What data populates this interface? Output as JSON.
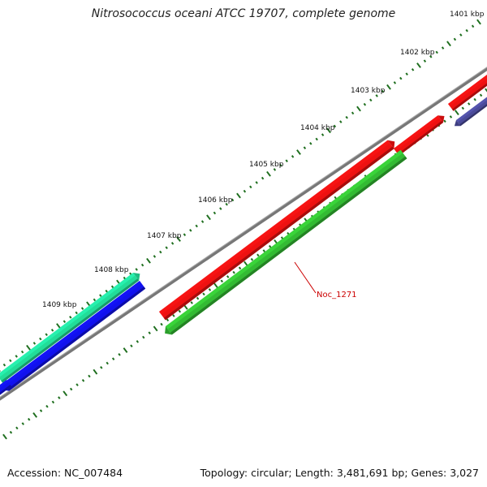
{
  "title": "Nitrosococcus oceani ATCC 19707, complete genome",
  "footer": {
    "accession": "Accession: NC_007484",
    "summary": "Topology: circular; Length: 3,481,691 bp; Genes: 3,027"
  },
  "colors": {
    "backbone": "#777777",
    "tick": "#1e6e1e",
    "callout": "#cc0000",
    "red_gene": "#ee1111",
    "green_gene": "#33bb33",
    "teal_gene": "#22dd99",
    "blue_gene": "#1111ee",
    "navy_gene": "#4a4a99"
  },
  "scale": {
    "unit": "kbp",
    "tick_labels": [
      "1401 kbp",
      "1402 kbp",
      "1403 kbp",
      "1404 kbp",
      "1405 kbp",
      "1406 kbp",
      "1407 kbp",
      "1408 kbp",
      "1409 kbp"
    ]
  },
  "annotations": [
    {
      "label": "Noc_1271",
      "gene_index": 6
    }
  ],
  "genes": [
    {
      "color_key": "red_gene",
      "strand": "+"
    },
    {
      "color_key": "red_gene",
      "strand": "+"
    },
    {
      "color_key": "navy_gene",
      "strand": "-"
    },
    {
      "color_key": "red_gene",
      "strand": "+"
    },
    {
      "color_key": "teal_gene",
      "strand": "+"
    },
    {
      "color_key": "blue_gene",
      "strand": "-"
    },
    {
      "color_key": "green_gene",
      "strand": "-"
    },
    {
      "color_key": "blue_gene",
      "strand": "-"
    }
  ]
}
